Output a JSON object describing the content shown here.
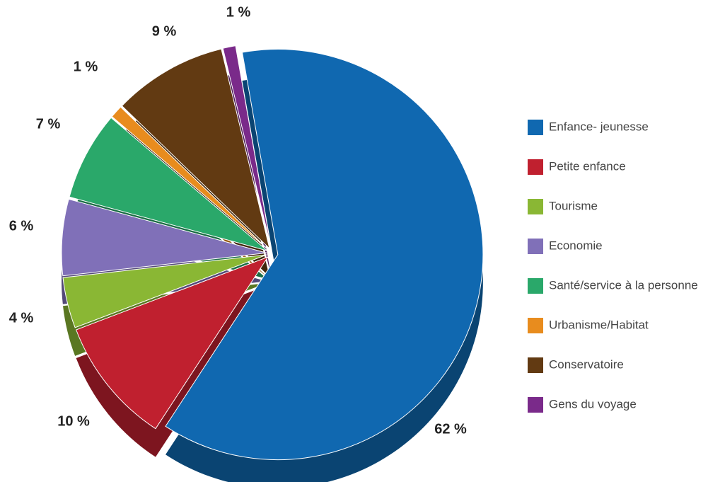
{
  "chart_data": {
    "type": "pie",
    "categories": [
      "Enfance- jeunesse",
      "Petite enfance",
      "Tourisme",
      "Economie",
      "Santé/service à la personne",
      "Urbanisme/Habitat",
      "Conservatoire",
      "Gens du voyage"
    ],
    "values": [
      62,
      10,
      4,
      6,
      7,
      1,
      9,
      1
    ],
    "value_labels": [
      "62 %",
      "10 %",
      "4 %",
      "6 %",
      "7 %",
      "1 %",
      "9 %",
      "1 %"
    ],
    "colors": [
      "#1068b0",
      "#c0202f",
      "#8ab734",
      "#8070b8",
      "#2aa86a",
      "#e88c1e",
      "#623a12",
      "#7a2a8a"
    ],
    "legend": "right"
  }
}
